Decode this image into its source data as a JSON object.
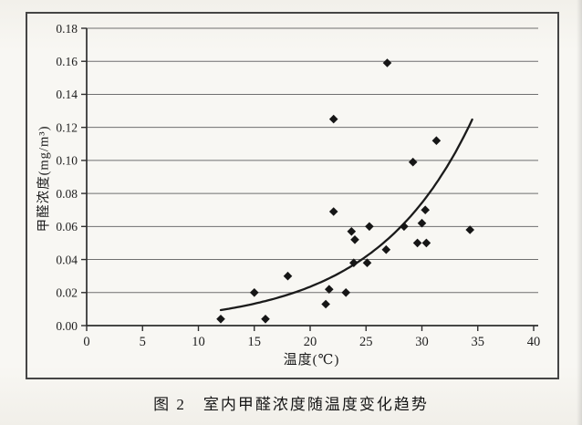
{
  "figure": {
    "caption": "图 2　室内甲醛浓度随温度变化趋势"
  },
  "chart_data": {
    "type": "scatter",
    "title": "",
    "xlabel": "温度(℃)",
    "ylabel": "甲醛浓度(mg/m³)",
    "xlim": [
      0,
      40
    ],
    "ylim": [
      0,
      0.18
    ],
    "x_ticks": [
      0,
      5,
      10,
      15,
      20,
      25,
      30,
      35,
      40
    ],
    "y_ticks": [
      "0.00",
      "0.02",
      "0.04",
      "0.06",
      "0.08",
      "0.10",
      "0.12",
      "0.14",
      "0.16",
      "0.18"
    ],
    "grid": "horizontal",
    "legend": "none",
    "points": [
      [
        12,
        0.004
      ],
      [
        15,
        0.02
      ],
      [
        16,
        0.004
      ],
      [
        18,
        0.03
      ],
      [
        21.4,
        0.013
      ],
      [
        21.7,
        0.022
      ],
      [
        23.2,
        0.02
      ],
      [
        22.1,
        0.069
      ],
      [
        22.1,
        0.125
      ],
      [
        23.7,
        0.057
      ],
      [
        24.0,
        0.052
      ],
      [
        23.9,
        0.038
      ],
      [
        25.1,
        0.038
      ],
      [
        25.3,
        0.06
      ],
      [
        26.8,
        0.046
      ],
      [
        26.9,
        0.159
      ],
      [
        28.4,
        0.06
      ],
      [
        29.2,
        0.099
      ],
      [
        29.6,
        0.05
      ],
      [
        30.4,
        0.05
      ],
      [
        30.0,
        0.062
      ],
      [
        30.3,
        0.07
      ],
      [
        31.3,
        0.112
      ],
      [
        34.3,
        0.058
      ]
    ],
    "trendline": {
      "type": "exponential",
      "a": 0.00236,
      "b": 0.115,
      "x_start": 12,
      "x_end": 34.5
    },
    "marker": {
      "shape": "diamond",
      "color": "#161616",
      "size": 9.6
    },
    "colors": {
      "axis": "#2e2e2e",
      "gridline": "#6f6f6f",
      "curve": "#1b1b1b",
      "text": "#1d1d1d",
      "frame": "#454545"
    }
  }
}
